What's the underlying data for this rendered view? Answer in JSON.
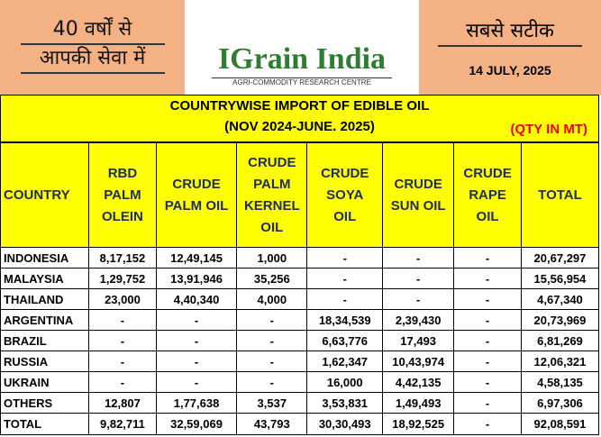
{
  "header": {
    "left_lines": [
      "40 वर्षों से",
      "आपकी सेवा में"
    ],
    "logo_title": "IGrain India",
    "logo_subtitle": "AGRI-COMMODITY RESEARCH CENTRE",
    "right_title": "सबसे सटीक",
    "date": "14 JULY, 2025"
  },
  "title": {
    "line1": "COUNTRYWISE IMPORT OF EDIBLE OIL",
    "line2": "(NOV 2024-JUNE. 2025)",
    "unit": "(QTY IN MT)"
  },
  "table": {
    "columns": [
      [
        "COUNTRY"
      ],
      [
        "RBD",
        "PALM",
        "OLEIN"
      ],
      [
        "CRUDE",
        "PALM OIL"
      ],
      [
        "CRUDE",
        "PALM",
        "KERNEL",
        "OIL"
      ],
      [
        "CRUDE",
        "SOYA",
        "OIL"
      ],
      [
        "CRUDE",
        "SUN OIL"
      ],
      [
        "CRUDE",
        "RAPE",
        "OIL"
      ],
      [
        "TOTAL"
      ]
    ],
    "rows": [
      [
        "INDONESIA",
        "8,17,152",
        "12,49,145",
        "1,000",
        "-",
        "-",
        "-",
        "20,67,297"
      ],
      [
        "MALAYSIA",
        "1,29,752",
        "13,91,946",
        "35,256",
        "-",
        "-",
        "-",
        "15,56,954"
      ],
      [
        "THAILAND",
        "23,000",
        "4,40,340",
        "4,000",
        "-",
        "-",
        "-",
        "4,67,340"
      ],
      [
        "ARGENTINA",
        "-",
        "-",
        "-",
        "18,34,539",
        "2,39,430",
        "-",
        "20,73,969"
      ],
      [
        "BRAZIL",
        "-",
        "-",
        "-",
        "6,63,776",
        "17,493",
        "-",
        "6,81,269"
      ],
      [
        "RUSSIA",
        "-",
        "-",
        "-",
        "1,62,347",
        "10,43,974",
        "-",
        "12,06,321"
      ],
      [
        "UKRAIN",
        "-",
        "-",
        "-",
        "16,000",
        "4,42,135",
        "-",
        "4,58,135"
      ],
      [
        "OTHERS",
        "12,807",
        "1,77,638",
        "3,537",
        "3,53,831",
        "1,49,493",
        "-",
        "6,97,306"
      ],
      [
        "TOTAL",
        "9,82,711",
        "32,59,069",
        "43,793",
        "30,30,493",
        "18,92,525",
        "-",
        "92,08,591"
      ]
    ]
  }
}
